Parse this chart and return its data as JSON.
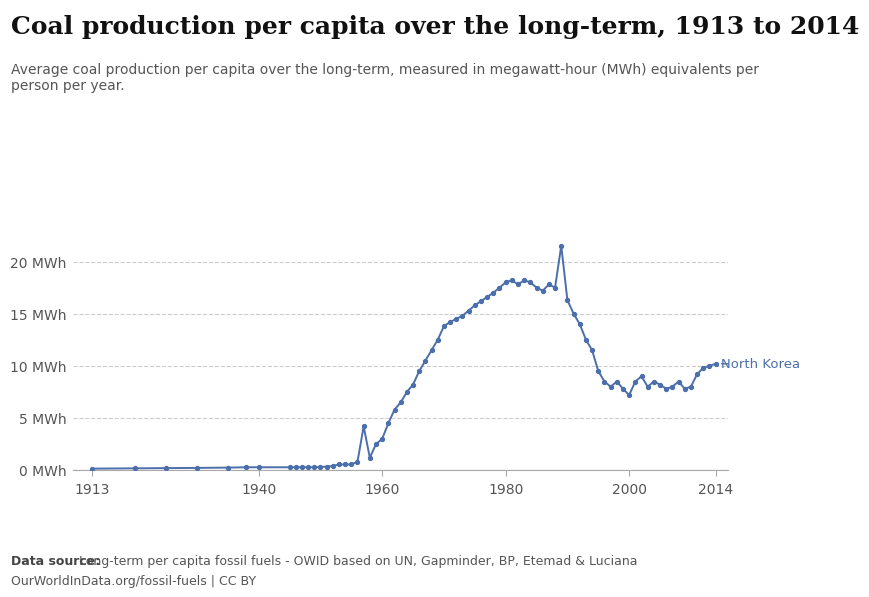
{
  "title": "Coal production per capita over the long-term, 1913 to 2014",
  "subtitle": "Average coal production per capita over the long-term, measured in megawatt-hour (MWh) equivalents per\nperson per year.",
  "data_source_bold": "Data source:",
  "data_source_rest": " Long-term per capita fossil fuels - OWID based on UN, Gapminder, BP, Etemad & Luciana",
  "data_source_line2": "OurWorldInData.org/fossil-fuels | CC BY",
  "line_color": "#4b6faa",
  "background_color": "#ffffff",
  "annotation_label": "North Korea",
  "years": [
    1913,
    1920,
    1925,
    1930,
    1935,
    1938,
    1940,
    1945,
    1946,
    1947,
    1948,
    1949,
    1950,
    1951,
    1952,
    1953,
    1954,
    1955,
    1956,
    1957,
    1958,
    1959,
    1960,
    1961,
    1962,
    1963,
    1964,
    1965,
    1966,
    1967,
    1968,
    1969,
    1970,
    1971,
    1972,
    1973,
    1974,
    1975,
    1976,
    1977,
    1978,
    1979,
    1980,
    1981,
    1982,
    1983,
    1984,
    1985,
    1986,
    1987,
    1988,
    1989,
    1990,
    1991,
    1992,
    1993,
    1994,
    1995,
    1996,
    1997,
    1998,
    1999,
    2000,
    2001,
    2002,
    2003,
    2004,
    2005,
    2006,
    2007,
    2008,
    2009,
    2010,
    2011,
    2012,
    2013,
    2014
  ],
  "values": [
    0.15,
    0.18,
    0.2,
    0.22,
    0.25,
    0.28,
    0.28,
    0.28,
    0.28,
    0.28,
    0.28,
    0.28,
    0.3,
    0.35,
    0.4,
    0.55,
    0.55,
    0.55,
    0.8,
    4.2,
    1.2,
    2.5,
    3.0,
    4.5,
    5.8,
    6.5,
    7.5,
    8.2,
    9.5,
    10.5,
    11.5,
    12.5,
    13.8,
    14.2,
    14.5,
    14.8,
    15.3,
    15.8,
    16.2,
    16.6,
    17.0,
    17.5,
    18.0,
    18.2,
    17.8,
    18.2,
    18.0,
    17.5,
    17.2,
    17.8,
    17.5,
    21.5,
    16.3,
    15.0,
    14.0,
    12.5,
    11.5,
    9.5,
    8.5,
    8.0,
    8.5,
    7.8,
    7.2,
    8.5,
    9.0,
    8.0,
    8.5,
    8.2,
    7.8,
    8.0,
    8.5,
    7.8,
    8.0,
    9.2,
    9.8,
    10.0,
    10.2
  ],
  "ylim": [
    0,
    23
  ],
  "yticks": [
    0,
    5,
    10,
    15,
    20
  ],
  "ytick_labels": [
    "0 MWh",
    "5 MWh",
    "10 MWh",
    "15 MWh",
    "20 MWh"
  ],
  "xticks": [
    1913,
    1940,
    1960,
    1980,
    2000,
    2014
  ],
  "xtick_labels": [
    "1913",
    "1940",
    "1960",
    "1980",
    "2000",
    "2014"
  ],
  "grid_color": "#cccccc",
  "marker_size": 2.8,
  "line_width": 1.4,
  "owid_box_color": "#1a2e5a",
  "owid_bar_color": "#c0392b",
  "title_fontsize": 18,
  "subtitle_fontsize": 10,
  "tick_fontsize": 10,
  "source_fontsize": 9
}
